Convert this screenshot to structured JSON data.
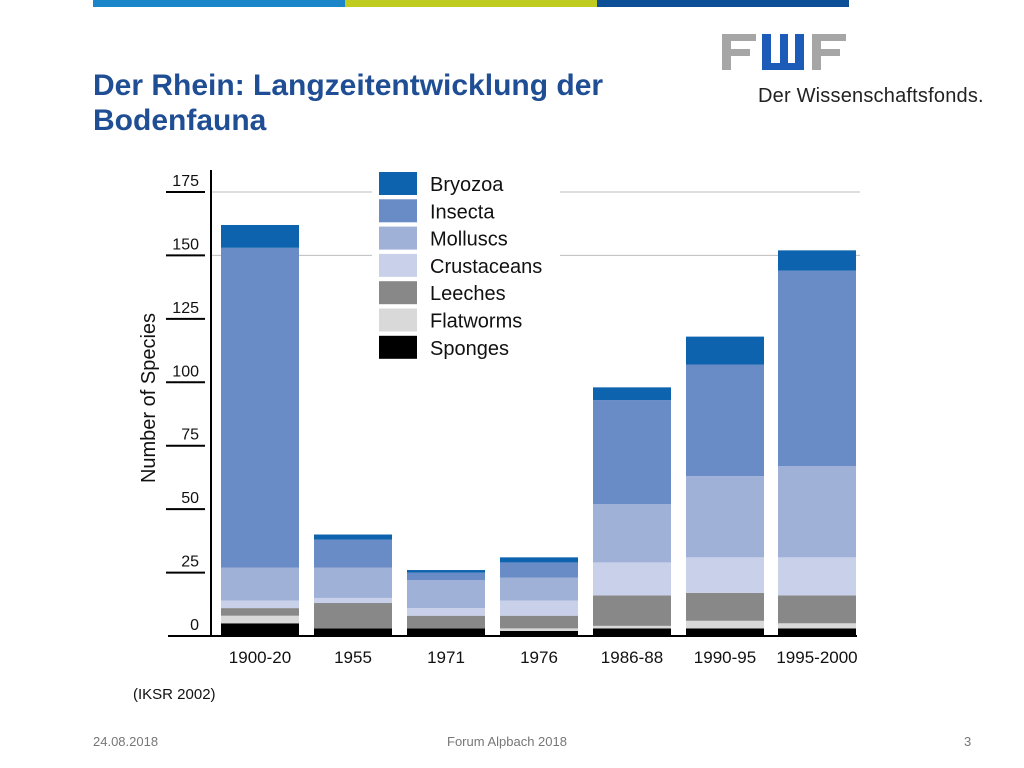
{
  "slide": {
    "title": "Der Rhein: Langzeitentwicklung der Bodenfauna",
    "logo_mark": "FWF",
    "logo_tagline": "Der Wissenschaftsfonds.",
    "source": "(IKSR 2002)",
    "footer": {
      "date": "24.08.2018",
      "event": "Forum Alpbach 2018",
      "page": "3"
    },
    "stripe_colors": [
      "#1a85c8",
      "#bfcc1f",
      "#0d4f96"
    ]
  },
  "chart_data": {
    "type": "bar",
    "stacked": true,
    "title": "",
    "xlabel": "",
    "ylabel": "Number of Species",
    "ylim": [
      0,
      175
    ],
    "yticks": [
      0,
      25,
      50,
      75,
      100,
      125,
      150,
      175
    ],
    "grid": "horizontal lines at 150 and 175 only",
    "legend_position": "top-center",
    "categories": [
      "1900-20",
      "1955",
      "1971",
      "1976",
      "1986-88",
      "1990-95",
      "1995-2000"
    ],
    "series": [
      {
        "name": "Sponges",
        "color": "#000000",
        "values": [
          5,
          3,
          3,
          2,
          3,
          3,
          3
        ]
      },
      {
        "name": "Flatworms",
        "color": "#d9d9d9",
        "values": [
          3,
          0,
          0,
          1,
          1,
          3,
          2
        ]
      },
      {
        "name": "Leeches",
        "color": "#888888",
        "values": [
          3,
          10,
          5,
          5,
          12,
          11,
          11
        ]
      },
      {
        "name": "Crustaceans",
        "color": "#c9d1ea",
        "values": [
          3,
          2,
          3,
          6,
          13,
          14,
          15
        ]
      },
      {
        "name": "Molluscs",
        "color": "#a0b1d8",
        "values": [
          13,
          12,
          11,
          9,
          23,
          32,
          36
        ]
      },
      {
        "name": "Insecta",
        "color": "#6a8cc6",
        "values": [
          126,
          11,
          3,
          6,
          41,
          44,
          77
        ]
      },
      {
        "name": "Bryozoa",
        "color": "#0d63ad",
        "values": [
          9,
          2,
          1,
          2,
          5,
          11,
          8
        ]
      }
    ]
  }
}
